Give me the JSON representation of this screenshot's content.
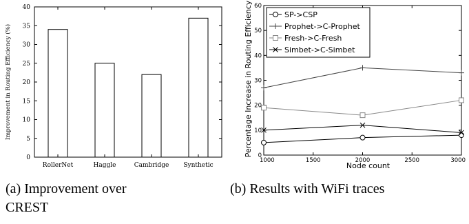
{
  "chart_data": [
    {
      "type": "bar",
      "title": "",
      "xlabel": "",
      "ylabel": "Improvement in Routing Efficiency (%)",
      "categories": [
        "RollerNet",
        "Haggle",
        "Cambridge",
        "Synthetic"
      ],
      "values": [
        34,
        25,
        22,
        37
      ],
      "ylim": [
        0,
        40
      ],
      "yticks": [
        0,
        5,
        10,
        15,
        20,
        25,
        30,
        35,
        40
      ],
      "grid": false
    },
    {
      "type": "line",
      "title": "",
      "xlabel": "Node count",
      "ylabel": "Percentage Increase in Routing Efficiency",
      "x": [
        1000,
        2000,
        3000
      ],
      "xlim": [
        1000,
        3000
      ],
      "ylim": [
        0,
        60
      ],
      "xticks": [
        1000,
        1500,
        2000,
        2500,
        3000
      ],
      "yticks": [
        0,
        10,
        20,
        30,
        40,
        50,
        60
      ],
      "legend_position": "top-left",
      "grid": false,
      "series": [
        {
          "name": "SP->CSP",
          "values": [
            5,
            7,
            8
          ],
          "marker": "circle",
          "color": "#000000"
        },
        {
          "name": "Prophet->C-Prophet",
          "values": [
            27,
            35,
            33
          ],
          "marker": "plus",
          "color": "#444444"
        },
        {
          "name": "Fresh->C-Fresh",
          "values": [
            19,
            16,
            22
          ],
          "marker": "square",
          "color": "#888888"
        },
        {
          "name": "Simbet->C-Simbet",
          "values": [
            10,
            12,
            9
          ],
          "marker": "x",
          "color": "#000000"
        }
      ]
    }
  ],
  "captions": {
    "left_line1": "(a)     Improvement      over",
    "left_line2": "CREST",
    "right_line1": "(b) Results with WiFi traces"
  }
}
